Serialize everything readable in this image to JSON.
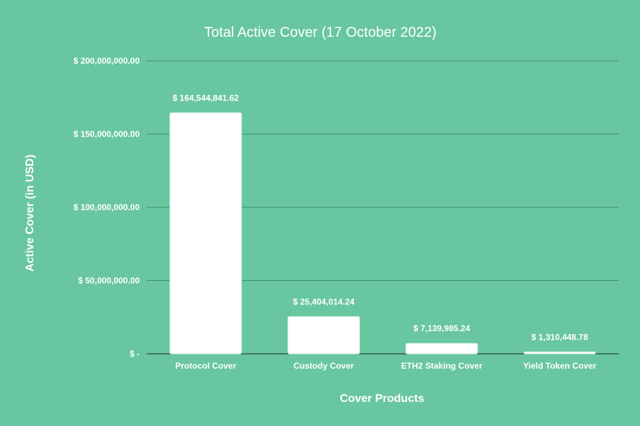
{
  "colors": {
    "background": "#68c6a0",
    "bar": "#ffffff",
    "text": "#ffffff",
    "gridline": "#3f8f6d",
    "baseline": "#1f2b26"
  },
  "chart_data": {
    "type": "bar",
    "title": "Total Active Cover (17 October 2022)",
    "xlabel": "Cover Products",
    "ylabel": "Active Cover (in USD)",
    "categories": [
      "Protocol Cover",
      "Custody Cover",
      "ETH2 Staking Cover",
      "Yield Token Cover"
    ],
    "values": [
      164544841.62,
      25404014.24,
      7139985.24,
      1310448.78
    ],
    "data_labels": [
      "$ 164,544,841.62",
      "$ 25,404,014.24",
      "$ 7,139,985.24",
      "$ 1,310,448.78"
    ],
    "yticks": [
      0,
      50000000,
      100000000,
      150000000,
      200000000
    ],
    "ytick_labels": [
      "$ -",
      "$ 50,000,000.00",
      "$ 100,000,000.00",
      "$ 150,000,000.00",
      "$ 200,000,000.00"
    ],
    "ylim": [
      0,
      200000000
    ],
    "grid": true,
    "legend": "none"
  }
}
